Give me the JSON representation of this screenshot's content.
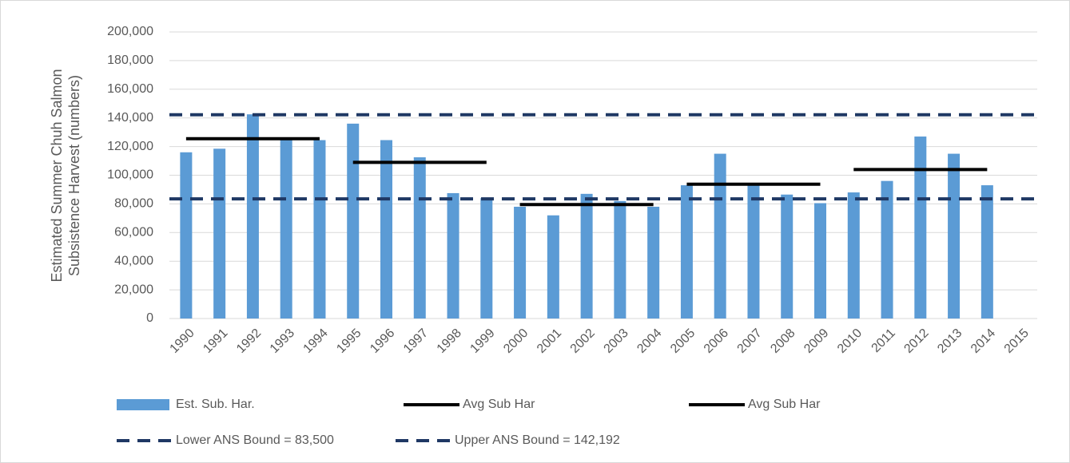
{
  "chart_data": {
    "type": "bar",
    "ylabel": [
      "Estimated Summer Chuh Salmon",
      "Subsistence Harvest (numbers)"
    ],
    "categories": [
      "1990",
      "1991",
      "1992",
      "1993",
      "1994",
      "1995",
      "1996",
      "1997",
      "1998",
      "1999",
      "2000",
      "2001",
      "2002",
      "2003",
      "2004",
      "2005",
      "2006",
      "2007",
      "2008",
      "2009",
      "2010",
      "2011",
      "2012",
      "2013",
      "2014",
      "2015"
    ],
    "series": [
      {
        "name": "Est. Sub. Har.",
        "kind": "bar",
        "color": "#5b9bd5",
        "values": [
          116000,
          118500,
          142500,
          125000,
          124500,
          136000,
          124500,
          112500,
          87500,
          84000,
          78000,
          72000,
          87000,
          82000,
          78000,
          93000,
          115000,
          93000,
          86500,
          80500,
          88000,
          96000,
          127000,
          115000,
          93000,
          null
        ]
      },
      {
        "name": "Avg Sub Har",
        "kind": "line",
        "color": "#000000",
        "values": [
          125500,
          125500,
          125500,
          125500,
          125500,
          null,
          null,
          null,
          null,
          null,
          79500,
          79500,
          79500,
          79500,
          79500,
          null,
          null,
          null,
          null,
          null,
          104000,
          104000,
          104000,
          104000,
          104000,
          null
        ]
      },
      {
        "name": "Avg Sub Har",
        "kind": "line",
        "color": "#000000",
        "values": [
          null,
          null,
          null,
          null,
          null,
          109000,
          109000,
          109000,
          109000,
          109000,
          null,
          null,
          null,
          null,
          null,
          93700,
          93700,
          93700,
          93700,
          93700,
          null,
          null,
          null,
          null,
          null,
          null
        ]
      }
    ],
    "reference_lines": [
      {
        "name": "Lower ANS Bound = 83,500",
        "value": 83500,
        "color": "#1f3864"
      },
      {
        "name": "Upper ANS Bound = 142,192",
        "value": 142192,
        "color": "#1f3864"
      }
    ],
    "ylim": [
      0,
      200000
    ],
    "yticks": [
      0,
      {
        "value": 20000,
        "label": "20,000"
      },
      {
        "value": 40000,
        "label": "40,000"
      },
      {
        "value": 60000,
        "label": "60,000"
      },
      {
        "value": 80000,
        "label": "80,000"
      },
      {
        "value": 100000,
        "label": "100,000"
      },
      {
        "value": 120000,
        "label": "120,000"
      },
      {
        "value": 140000,
        "label": "140,000"
      },
      {
        "value": 160000,
        "label": "160,000"
      },
      {
        "value": 180000,
        "label": "180,000"
      },
      {
        "value": 200000,
        "label": "200,000"
      }
    ],
    "grid": true
  }
}
